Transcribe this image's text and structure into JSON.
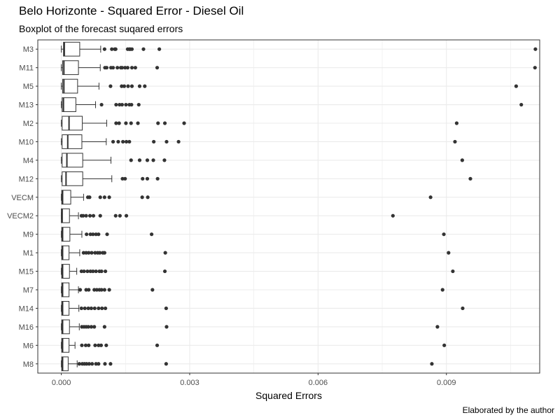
{
  "chart_data": {
    "type": "boxplot",
    "orientation": "horizontal",
    "title": "Belo Horizonte - Squared Error - Diesel Oil",
    "subtitle": "Boxplot of the forecast suqared errors",
    "xlabel": "Squared Errors",
    "ylabel": "",
    "caption": "Elaborated by the author",
    "xlim": [
      -0.00055,
      0.01118
    ],
    "xticks": [
      0,
      0.003,
      0.006,
      0.009
    ],
    "xtick_labels": [
      "0.000",
      "0.003",
      "0.006",
      "0.009"
    ],
    "grid": true,
    "colors": {
      "box_fill": "#ffffff",
      "box_line": "#333333",
      "outlier": "#333333",
      "panel_border": "#333333",
      "grid": "#ebebeb"
    },
    "categories": [
      "M3",
      "M11",
      "M5",
      "M13",
      "M2",
      "M10",
      "M4",
      "M12",
      "VECM",
      "VECM2",
      "M9",
      "M1",
      "M15",
      "M7",
      "M14",
      "M16",
      "M6",
      "M8"
    ],
    "series": [
      {
        "label": "M3",
        "whislo": 0.0,
        "q1": 5e-05,
        "median": 7e-05,
        "q3": 0.00043,
        "whishi": 0.00092,
        "outliers": [
          0.00101,
          0.00118,
          0.00125,
          0.00127,
          0.00155,
          0.00159,
          0.00161,
          0.00165,
          0.00192,
          0.00229,
          0.01108
        ]
      },
      {
        "label": "M11",
        "whislo": 0.0,
        "q1": 3e-05,
        "median": 6e-05,
        "q3": 0.0004,
        "whishi": 0.00091,
        "outliers": [
          0.00102,
          0.00106,
          0.00116,
          0.00121,
          0.00131,
          0.00139,
          0.00142,
          0.00149,
          0.00155,
          0.00165,
          0.00173,
          0.00224,
          0.01107
        ]
      },
      {
        "label": "M5",
        "whislo": 0.0,
        "q1": 3e-05,
        "median": 6e-05,
        "q3": 0.00038,
        "whishi": 0.00088,
        "outliers": [
          0.00115,
          0.00141,
          0.00147,
          0.00156,
          0.00165,
          0.00183,
          0.00195,
          0.01063
        ]
      },
      {
        "label": "M13",
        "whislo": 0.0,
        "q1": 2e-05,
        "median": 5e-05,
        "q3": 0.00034,
        "whishi": 0.0008,
        "outliers": [
          0.00094,
          0.00128,
          0.00136,
          0.00142,
          0.00151,
          0.00159,
          0.00164,
          0.00181,
          0.01075
        ]
      },
      {
        "label": "M2",
        "whislo": 0.0,
        "q1": 2e-05,
        "median": 0.00018,
        "q3": 0.00049,
        "whishi": 0.00106,
        "outliers": [
          0.00128,
          0.00135,
          0.00151,
          0.00163,
          0.00179,
          0.00226,
          0.00242,
          0.00287,
          0.00924
        ]
      },
      {
        "label": "M10",
        "whislo": 0.0,
        "q1": 2e-05,
        "median": 0.00015,
        "q3": 0.00048,
        "whishi": 0.00105,
        "outliers": [
          0.00121,
          0.00133,
          0.00144,
          0.00152,
          0.00159,
          0.00216,
          0.00246,
          0.00274,
          0.0092
        ]
      },
      {
        "label": "M4",
        "whislo": 0.0,
        "q1": 2e-05,
        "median": 0.00013,
        "q3": 0.0005,
        "whishi": 0.00116,
        "outliers": [
          0.00163,
          0.00183,
          0.00201,
          0.00215,
          0.00241,
          0.00937
        ]
      },
      {
        "label": "M12",
        "whislo": 0.0,
        "q1": 2e-05,
        "median": 0.00011,
        "q3": 0.0005,
        "whishi": 0.00118,
        "outliers": [
          0.00143,
          0.00149,
          0.0019,
          0.00201,
          0.00225,
          0.00956
        ]
      },
      {
        "label": "VECM",
        "whislo": 0.0,
        "q1": 1e-05,
        "median": 3e-05,
        "q3": 0.00022,
        "whishi": 0.00052,
        "outliers": [
          0.00062,
          0.00066,
          0.00091,
          0.00101,
          0.00112,
          0.00189,
          0.00202,
          0.00863
        ]
      },
      {
        "label": "VECM2",
        "whislo": 0.0,
        "q1": 0.0,
        "median": 2e-05,
        "q3": 0.00019,
        "whishi": 0.0004,
        "outliers": [
          0.00047,
          0.00051,
          0.00058,
          0.00067,
          0.00075,
          0.00091,
          0.00127,
          0.00137,
          0.00152,
          0.00775
        ]
      },
      {
        "label": "M9",
        "whislo": 0.0,
        "q1": 1e-05,
        "median": 3e-05,
        "q3": 0.0002,
        "whishi": 0.00048,
        "outliers": [
          0.00059,
          0.00068,
          0.00074,
          0.00081,
          0.00087,
          0.00107,
          0.00211,
          0.00894
        ]
      },
      {
        "label": "M1",
        "whislo": 0.0,
        "q1": 1e-05,
        "median": 3e-05,
        "q3": 0.00018,
        "whishi": 0.00043,
        "outliers": [
          0.00052,
          0.00058,
          0.00064,
          0.00071,
          0.00079,
          0.00085,
          0.0009,
          0.00097,
          0.00101,
          0.00243,
          0.00905
        ]
      },
      {
        "label": "M15",
        "whislo": 0.0,
        "q1": 1e-05,
        "median": 3e-05,
        "q3": 0.00019,
        "whishi": 0.00036,
        "outliers": [
          0.00047,
          0.00053,
          0.00061,
          0.00068,
          0.00074,
          0.00081,
          0.00089,
          0.00094,
          0.00103,
          0.00242,
          0.00915
        ]
      },
      {
        "label": "M7",
        "whislo": 0.0,
        "q1": 1e-05,
        "median": 3e-05,
        "q3": 0.00018,
        "whishi": 0.0004,
        "outliers": [
          0.00044,
          0.00058,
          0.00064,
          0.00077,
          0.00083,
          0.00089,
          0.00094,
          0.00101,
          0.00112,
          0.00213,
          0.00891
        ]
      },
      {
        "label": "M14",
        "whislo": 0.0,
        "q1": 1e-05,
        "median": 3e-05,
        "q3": 0.00018,
        "whishi": 0.00041,
        "outliers": [
          0.00047,
          0.00055,
          0.00063,
          0.0007,
          0.00078,
          0.00087,
          0.00095,
          0.00103,
          0.00245,
          0.00938
        ]
      },
      {
        "label": "M16",
        "whislo": 0.0,
        "q1": 1e-05,
        "median": 3e-05,
        "q3": 0.00019,
        "whishi": 0.00042,
        "outliers": [
          0.00048,
          0.00053,
          0.00058,
          0.00063,
          0.0007,
          0.00077,
          0.00101,
          0.00246,
          0.00879
        ]
      },
      {
        "label": "M6",
        "whislo": 0.0,
        "q1": 1e-05,
        "median": 3e-05,
        "q3": 0.00018,
        "whishi": 0.00032,
        "outliers": [
          0.00048,
          0.00057,
          0.00064,
          0.00079,
          0.00087,
          0.00093,
          0.00105,
          0.00224,
          0.00895
        ]
      },
      {
        "label": "M8",
        "whislo": 0.0,
        "q1": 1e-05,
        "median": 3e-05,
        "q3": 0.00016,
        "whishi": 0.00037,
        "outliers": [
          0.00042,
          0.00049,
          0.00054,
          0.00059,
          0.00065,
          0.00072,
          0.00081,
          0.00087,
          0.00102,
          0.00115,
          0.00245,
          0.00866
        ]
      }
    ]
  }
}
